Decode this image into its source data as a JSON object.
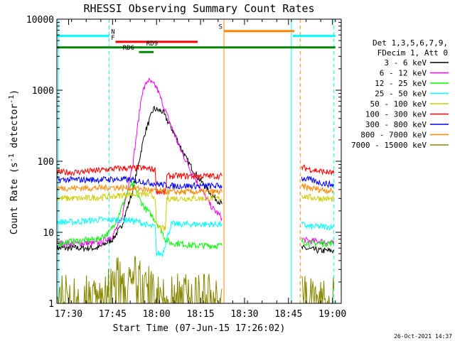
{
  "chart_data": {
    "type": "line",
    "title": "RHESSI Observing Summary Count Rates",
    "xlabel": "Start Time (07-Jun-15 17:26:02)",
    "ylabel": "Count Rate (s",
    "ylabel_sup": "-1",
    "ylabel_tail": " detector",
    "ylabel_close": ")",
    "yscale": "log",
    "xlim": [
      "17:26",
      "19:03"
    ],
    "ylim": [
      1,
      10000
    ],
    "xticks": [
      "17:30",
      "17:45",
      "18:00",
      "18:15",
      "18:30",
      "18:45",
      "19:00"
    ],
    "yticks": [
      "1",
      "10",
      "100",
      "1000",
      "10000"
    ],
    "legend": {
      "placement": "right",
      "header_1": "Det 1,3,5,6,7,9,",
      "header_2": "FDecim 1, Att 0"
    },
    "timestamp": "26-Oct-2021 14:37",
    "series": [
      {
        "name": "3 - 6 keV",
        "color": "#000000",
        "segments": [
          {
            "x": [
              "17:26",
              "17:32",
              "17:40",
              "17:45",
              "17:48",
              "17:52",
              "17:56",
              "17:59",
              "18:02",
              "18:06",
              "18:10",
              "18:14",
              "18:19",
              "18:22.3"
            ],
            "y": [
              6,
              6,
              6,
              8,
              12,
              40,
              250,
              550,
              500,
              250,
              110,
              60,
              33,
              25
            ]
          },
          {
            "x": [
              "18:49.5",
              "18:52",
              "18:56",
              "19:00.5"
            ],
            "y": [
              6,
              5.8,
              5.5,
              5.5
            ]
          }
        ]
      },
      {
        "name": "6 - 12 keV",
        "color": "#ff00ff",
        "segments": [
          {
            "x": [
              "17:26",
              "17:32",
              "17:40",
              "17:45",
              "17:48",
              "17:52",
              "17:55",
              "17:57",
              "18:00",
              "18:04",
              "18:08",
              "18:12",
              "18:16",
              "18:19",
              "18:22.3"
            ],
            "y": [
              7,
              7,
              7,
              9,
              15,
              100,
              900,
              1400,
              1100,
              400,
              150,
              70,
              35,
              22,
              16
            ]
          },
          {
            "x": [
              "18:49.5",
              "18:52",
              "18:56",
              "19:00.5"
            ],
            "y": [
              8,
              7.5,
              7.5,
              7
            ]
          }
        ]
      },
      {
        "name": "12 - 25 keV",
        "color": "#00ff00",
        "segments": [
          {
            "x": [
              "17:26",
              "17:32",
              "17:40",
              "17:44",
              "17:47",
              "17:50",
              "17:52",
              "17:54",
              "17:56",
              "17:58",
              "18:00",
              "18:02",
              "18:03",
              "18:05",
              "18:08",
              "18:12",
              "18:16",
              "18:20",
              "18:22.3"
            ],
            "y": [
              7,
              7.5,
              8,
              10,
              17,
              36,
              48,
              30,
              22,
              18,
              14,
              10,
              8,
              7,
              7,
              6.5,
              6.5,
              6.5,
              6.5
            ]
          },
          {
            "x": [
              "18:49.5",
              "18:52",
              "18:56",
              "19:00.5"
            ],
            "y": [
              7.5,
              7,
              7,
              7
            ]
          }
        ]
      },
      {
        "name": "25 - 50 keV",
        "color": "#00ffff",
        "segments": [
          {
            "x": [
              "17:26",
              "17:32",
              "17:40",
              "17:45",
              "17:50",
              "17:54",
              "17:56",
              "17:58",
              "17:59.5",
              "18:00",
              "18:02",
              "18:05",
              "18:10",
              "18:15",
              "18:20",
              "18:22.3"
            ],
            "y": [
              14,
              14,
              15,
              15,
              15,
              14,
              13,
              12,
              12,
              5,
              5,
              13,
              13,
              13,
              13,
              13
            ]
          },
          {
            "x": [
              "18:49.5",
              "18:52",
              "18:56",
              "19:00.5"
            ],
            "y": [
              13,
              12,
              12,
              12
            ]
          }
        ]
      },
      {
        "name": "50 - 100 keV",
        "color": "#cccc00",
        "segments": [
          {
            "x": [
              "17:26",
              "17:35",
              "17:45",
              "17:50",
              "17:55",
              "17:58",
              "17:59.5",
              "18:00",
              "18:03",
              "18:03.5",
              "18:10",
              "18:16",
              "18:22.3"
            ],
            "y": [
              30,
              30,
              32,
              34,
              35,
              33,
              32,
              12,
              11,
              30,
              30,
              30,
              30
            ]
          },
          {
            "x": [
              "18:49.5",
              "18:52",
              "18:56",
              "19:00.5"
            ],
            "y": [
              33,
              31,
              30,
              29
            ]
          }
        ]
      },
      {
        "name": "100 - 300 keV",
        "color": "#ff0000",
        "segments": [
          {
            "x": [
              "17:26",
              "17:32",
              "17:40",
              "17:45",
              "17:50",
              "17:55",
              "17:58",
              "17:59.5",
              "18:00",
              "18:03",
              "18:03.5",
              "18:10",
              "18:16",
              "18:22.3"
            ],
            "y": [
              70,
              70,
              74,
              78,
              80,
              80,
              78,
              76,
              38,
              36,
              62,
              62,
              62,
              62
            ]
          },
          {
            "x": [
              "18:49.5",
              "18:52",
              "18:56",
              "19:00.5"
            ],
            "y": [
              82,
              78,
              72,
              68
            ]
          }
        ]
      },
      {
        "name": "300 - 800 keV",
        "color": "#0000ff",
        "segments": [
          {
            "x": [
              "17:26",
              "17:32",
              "17:40",
              "17:45",
              "17:50",
              "17:55",
              "18:00",
              "18:05",
              "18:10",
              "18:16",
              "18:22.3"
            ],
            "y": [
              55,
              55,
              55,
              56,
              55,
              52,
              48,
              45,
              45,
              45,
              45
            ]
          },
          {
            "x": [
              "18:49.5",
              "18:52",
              "18:56",
              "19:00.5"
            ],
            "y": [
              58,
              55,
              50,
              46
            ]
          }
        ]
      },
      {
        "name": "800 - 7000 keV",
        "color": "#ff8800",
        "segments": [
          {
            "x": [
              "17:26",
              "17:32",
              "17:40",
              "17:45",
              "17:50",
              "17:55",
              "18:00",
              "18:05",
              "18:10",
              "18:16",
              "18:22.3"
            ],
            "y": [
              42,
              42,
              42,
              43,
              42,
              41,
              38,
              37,
              37,
              37,
              37
            ]
          },
          {
            "x": [
              "18:49.5",
              "18:52",
              "18:56",
              "19:00.5"
            ],
            "y": [
              44,
              42,
              40,
              38
            ]
          }
        ]
      },
      {
        "name": "7000 - 15000 keV",
        "color": "#888800",
        "segments": [
          {
            "x": [
              "17:26",
              "17:35",
              "17:43",
              "17:44",
              "17:50",
              "17:55",
              "17:58",
              "17:59",
              "18:05",
              "18:15",
              "18:22.3"
            ],
            "y": [
              1.6,
              1.6,
              1.6,
              2.8,
              2.8,
              2.8,
              2.8,
              1.6,
              1.6,
              1.6,
              1.6
            ]
          },
          {
            "x": [
              "18:49.5",
              "18:52",
              "18:56",
              "19:00.5"
            ],
            "y": [
              1.6,
              1.6,
              1.6,
              1.6
            ]
          }
        ]
      }
    ],
    "flag_bars": [
      {
        "label": "N",
        "color": "#00ffff",
        "y": 5800,
        "ranges": [
          [
            "17:26",
            "17:43.8"
          ],
          [
            "18:46.5",
            "19:01"
          ]
        ],
        "label_at": "17:44.5"
      },
      {
        "label": "S",
        "color": "#ff8800",
        "y": 6800,
        "ranges": [
          [
            "18:23",
            "18:47"
          ]
        ],
        "label_at": "18:21.2"
      },
      {
        "label": "F",
        "color": "#ff0000",
        "y": 4800,
        "ranges": [
          [
            "17:46",
            "18:14"
          ]
        ],
        "label_at": "17:44.5"
      },
      {
        "label": "RD9",
        "color": "#008800",
        "y": 4000,
        "ranges": [
          [
            "17:26",
            "19:01"
          ]
        ],
        "label_at": "17:56.5"
      },
      {
        "label": "RD6",
        "color": "#008800",
        "y": 3450,
        "ranges": [
          [
            "17:54",
            "17:59"
          ]
        ],
        "label_at": "17:48.5"
      }
    ],
    "markers": [
      {
        "x": "17:26.5",
        "color": "#00ffff",
        "style": "solid"
      },
      {
        "x": "17:43.8",
        "color": "#00ffff",
        "style": "dashed"
      },
      {
        "x": "18:23",
        "color": "#ff8800",
        "style": "solid"
      },
      {
        "x": "18:46",
        "color": "#00ffff",
        "style": "solid"
      },
      {
        "x": "18:49",
        "color": "#ff8800",
        "style": "dashed"
      },
      {
        "x": "19:00.5",
        "color": "#00ffff",
        "style": "dashed"
      }
    ]
  }
}
